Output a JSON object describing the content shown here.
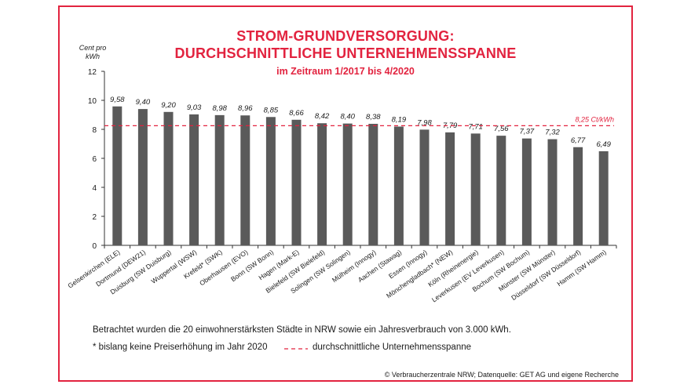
{
  "header": {
    "title_line1": "STROM-GRUNDVERSORGUNG:",
    "title_line2": "DURCHSCHNITTLICHE UNTERNEHMENSSPANNE",
    "subtitle": "im Zeitraum 1/2017 bis 4/2020"
  },
  "notes": {
    "line1": "Betrachtet wurden die 20 einwohnerstärksten Städte in NRW sowie ein Jahresverbrauch von 3.000 kWh.",
    "footnote": "* bislang keine Preiserhöhung im Jahr 2020",
    "legend_dash": "durchschnittliche Unternehmensspanne",
    "source": "© Verbraucherzentrale NRW; Datenquelle: GET AG und eigene Recherche"
  },
  "colors": {
    "accent": "#e2233f",
    "bar": "#5a5a5a",
    "axis": "#333333"
  },
  "chart_data": {
    "type": "bar",
    "ylabel_line1": "Cent pro",
    "ylabel_line2": "kWh",
    "ylim": [
      0,
      12
    ],
    "yticks": [
      0,
      2,
      4,
      6,
      8,
      10,
      12
    ],
    "grid": false,
    "categories": [
      "Gelsenkirchen (ELE)",
      "Dortmund (DEW21)",
      "Duisburg (SW Duisburg)",
      "Wuppertal (WSW)",
      "Krefeld* (SWK)",
      "Oberhausen (EVO)",
      "Bonn (SW Bonn)",
      "Hagen (Mark-E)",
      "Bielefeld (SW Bielefeld)",
      "Solingen (SW Solingen)",
      "Mülheim (Innogy)",
      "Aachen (Stawag)",
      "Essen (Innogy)",
      "Mönchengladbach* (NEW)",
      "Köln (Rheinenergie)",
      "Leverkusen (EV Leverkusen)",
      "Bochum (SW Bochum)",
      "Münster (SW Münster)",
      "Düsseldorf (SW Düsseldorf)",
      "Hamm (SW Hamm)"
    ],
    "values": [
      9.58,
      9.4,
      9.2,
      9.03,
      8.98,
      8.96,
      8.85,
      8.66,
      8.42,
      8.4,
      8.38,
      8.19,
      7.98,
      7.79,
      7.71,
      7.56,
      7.37,
      7.32,
      6.77,
      6.49
    ],
    "value_labels": [
      "9,58",
      "9,40",
      "9,20",
      "9,03",
      "8,98",
      "8,96",
      "8,85",
      "8,66",
      "8,42",
      "8,40",
      "8,38",
      "8,19",
      "7,98",
      "7,79",
      "7,71",
      "7,56",
      "7,37",
      "7,32",
      "6,77",
      "6,49"
    ],
    "average_line": {
      "value": 8.25,
      "label": "8,25 Ct/kWh"
    }
  }
}
